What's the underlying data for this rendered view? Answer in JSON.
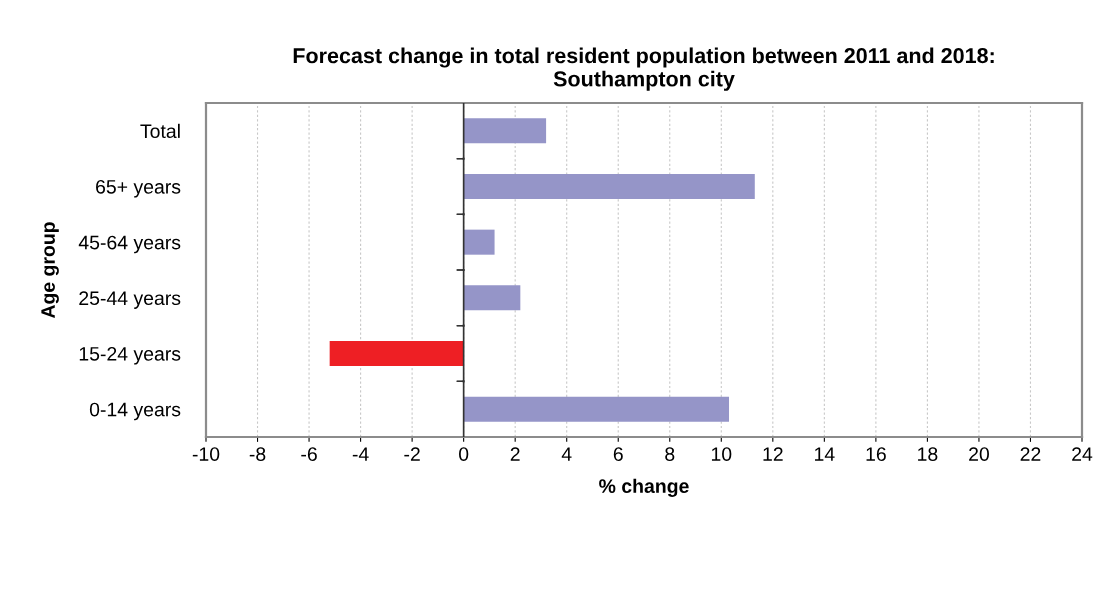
{
  "chart_data": {
    "type": "bar",
    "orientation": "horizontal",
    "title": "Forecast change in total resident population between 2011 and 2018:\nSouthampton city",
    "xlabel": "% change",
    "ylabel": "Age group",
    "categories": [
      "Total",
      "65+ years",
      "45-64 years",
      "25-44 years",
      "15-24 years",
      "0-14 years"
    ],
    "values": [
      3.2,
      11.3,
      1.2,
      2.2,
      -5.2,
      10.3
    ],
    "colors": [
      "#9595c8",
      "#9595c8",
      "#9595c8",
      "#9595c8",
      "#ee1f24",
      "#9595c8"
    ],
    "xlim": [
      -10,
      24
    ],
    "xticks": [
      -10,
      -8,
      -6,
      -4,
      -2,
      0,
      2,
      4,
      6,
      8,
      10,
      12,
      14,
      16,
      18,
      20,
      22,
      24
    ],
    "grid": "x",
    "legend": false
  }
}
